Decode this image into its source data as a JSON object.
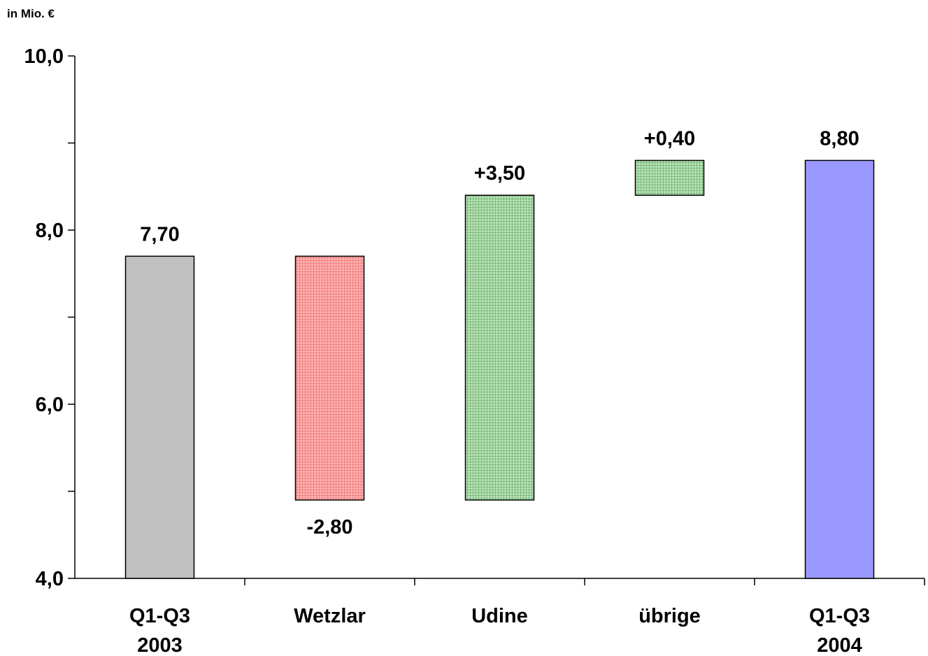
{
  "chart_data": {
    "type": "bar",
    "subtype": "waterfall",
    "ylabel": "in Mio. €",
    "ylim": [
      4.0,
      10.0
    ],
    "yticks": [
      "4,0",
      "6,0",
      "8,0",
      "10,0"
    ],
    "categories": [
      [
        "Q1-Q3",
        "2003"
      ],
      [
        "Wetzlar"
      ],
      [
        "Udine"
      ],
      [
        "übrige"
      ],
      [
        "Q1-Q3",
        "2004"
      ]
    ],
    "bars": [
      {
        "start": 4.0,
        "end": 7.7,
        "label": "7,70",
        "label_pos": "above",
        "kind": "total",
        "color": "#c0c0c0"
      },
      {
        "start": 7.7,
        "end": 4.9,
        "label": "-2,80",
        "label_pos": "below",
        "kind": "decrease",
        "color": "#ff9999"
      },
      {
        "start": 4.9,
        "end": 8.4,
        "label": "+3,50",
        "label_pos": "above",
        "kind": "increase",
        "color": "#99cc99"
      },
      {
        "start": 8.4,
        "end": 8.8,
        "label": "+0,40",
        "label_pos": "above",
        "kind": "increase",
        "color": "#99cc99"
      },
      {
        "start": 4.0,
        "end": 8.8,
        "label": "8,80",
        "label_pos": "above",
        "kind": "total",
        "color": "#9999ff"
      }
    ],
    "grid": false,
    "legend": "none"
  }
}
